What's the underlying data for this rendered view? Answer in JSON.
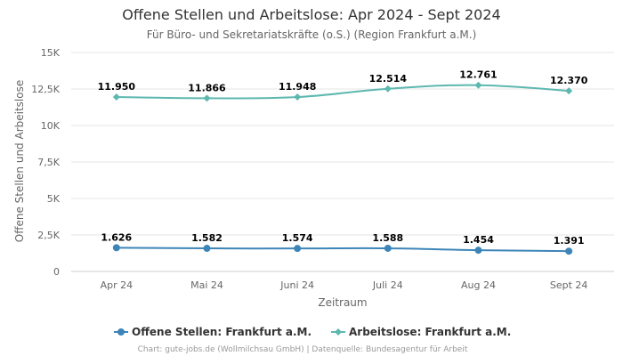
{
  "chart_data": {
    "type": "line",
    "title": "Offene Stellen und Arbeitslose: Apr 2024 - Sept 2024",
    "subtitle": "Für Büro- und Sekretariatskräfte (o.S.) (Region Frankfurt a.M.)",
    "xlabel": "Zeitraum",
    "ylabel": "Offene Stellen und Arbeitslose",
    "categories": [
      "Apr 24",
      "Mai 24",
      "Juni 24",
      "Juli 24",
      "Aug 24",
      "Sept 24"
    ],
    "ylim": [
      0,
      15000
    ],
    "yticks": [
      {
        "value": 0,
        "label": "0"
      },
      {
        "value": 2500,
        "label": "2,5K"
      },
      {
        "value": 5000,
        "label": "5K"
      },
      {
        "value": 7500,
        "label": "7,5K"
      },
      {
        "value": 10000,
        "label": "10K"
      },
      {
        "value": 12500,
        "label": "12,5K"
      },
      {
        "value": 15000,
        "label": "15K"
      }
    ],
    "grid": true,
    "legend_position": "bottom",
    "series": [
      {
        "name": "Offene Stellen: Frankfurt a.M.",
        "color": "#3d85b8",
        "marker": "circle",
        "values": [
          1626,
          1582,
          1574,
          1588,
          1454,
          1391
        ],
        "labels": [
          "1.626",
          "1.582",
          "1.574",
          "1.588",
          "1.454",
          "1.391"
        ]
      },
      {
        "name": "Arbeitslose: Frankfurt a.M.",
        "color": "#5db8b0",
        "marker": "diamond",
        "values": [
          11950,
          11866,
          11948,
          12514,
          12761,
          12370
        ],
        "labels": [
          "11.950",
          "11.866",
          "11.948",
          "12.514",
          "12.761",
          "12.370"
        ]
      }
    ],
    "credits": "Chart: gute-jobs.de (Wollmilchsau GmbH) | Datenquelle: Bundesagentur für Arbeit"
  }
}
